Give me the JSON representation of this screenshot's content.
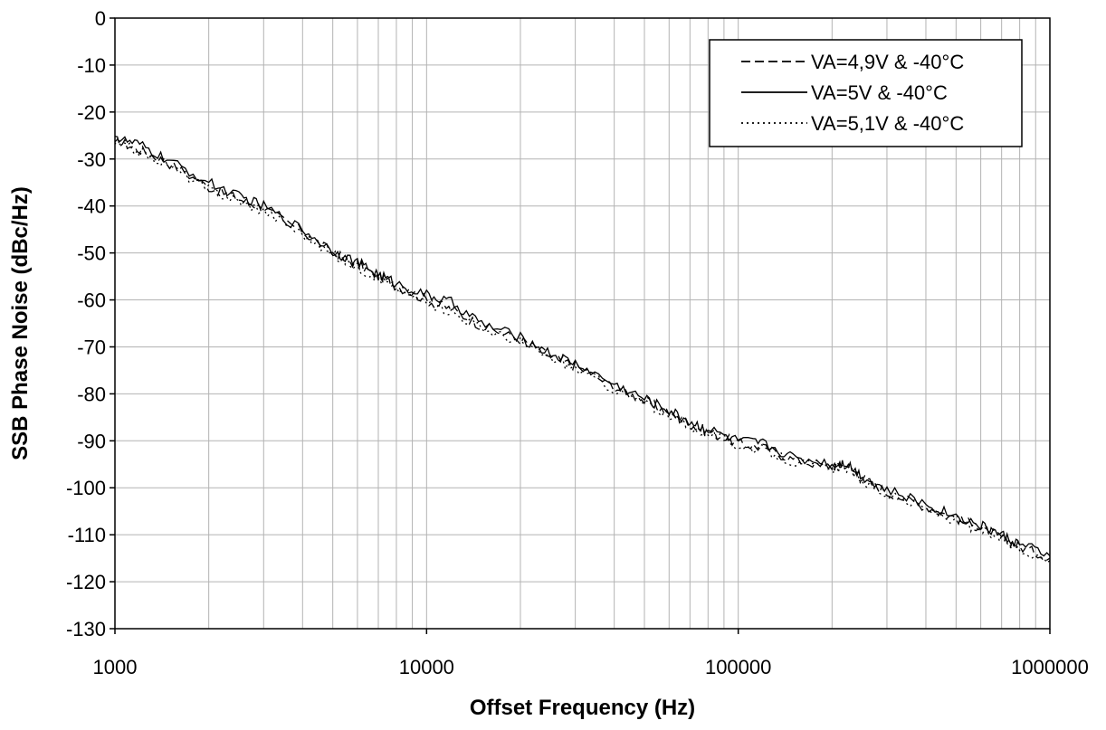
{
  "chart_data": {
    "type": "line",
    "xlabel": "Offset Frequency (Hz)",
    "ylabel": "SSB Phase Noise (dBc/Hz)",
    "x_scale": "log",
    "xlim": [
      1000,
      1000000
    ],
    "ylim": [
      -130,
      0
    ],
    "x_ticks": [
      1000,
      10000,
      100000,
      1000000
    ],
    "x_tick_labels": [
      "1000",
      "10000",
      "100000",
      "1000000"
    ],
    "y_ticks": [
      0,
      -10,
      -20,
      -30,
      -40,
      -50,
      -60,
      -70,
      -80,
      -90,
      -100,
      -110,
      -120,
      -130
    ],
    "y_tick_labels": [
      "0",
      "-10",
      "-20",
      "-30",
      "-40",
      "-50",
      "-60",
      "-70",
      "-80",
      "-90",
      "-100",
      "-110",
      "-120",
      "-130"
    ],
    "grid": "x-major-and-minor, y-major",
    "legend_position": "top-right",
    "series": [
      {
        "name": "VA=4,9V & -40°C",
        "line_style": "dashed",
        "x": [
          1000,
          1200,
          1500,
          2000,
          2500,
          3000,
          4000,
          5000,
          6000,
          7000,
          8000,
          10000,
          12000,
          15000,
          20000,
          25000,
          30000,
          40000,
          50000,
          60000,
          70000,
          80000,
          100000,
          120000,
          150000,
          200000,
          220000,
          250000,
          300000,
          400000,
          500000,
          600000,
          700000,
          800000,
          1000000
        ],
        "y": [
          -26,
          -28,
          -31,
          -36,
          -38.5,
          -40.5,
          -45.5,
          -50,
          -52.5,
          -55,
          -57,
          -60,
          -62,
          -65.5,
          -68.5,
          -72,
          -74,
          -78.5,
          -81.5,
          -84,
          -86.5,
          -88,
          -90.5,
          -91.5,
          -94,
          -95.5,
          -95,
          -98,
          -101,
          -104,
          -106.5,
          -108.5,
          -110.5,
          -112.5,
          -115
        ]
      },
      {
        "name": "VA=5V & -40°C",
        "line_style": "solid",
        "x": [
          1000,
          1200,
          1500,
          2000,
          2500,
          3000,
          4000,
          5000,
          6000,
          7000,
          8000,
          10000,
          12000,
          15000,
          20000,
          25000,
          30000,
          40000,
          50000,
          60000,
          70000,
          80000,
          100000,
          120000,
          150000,
          200000,
          220000,
          250000,
          300000,
          400000,
          500000,
          600000,
          700000,
          800000,
          1000000
        ],
        "y": [
          -25.5,
          -27,
          -30.5,
          -35,
          -38,
          -40,
          -45,
          -49.5,
          -52,
          -54.5,
          -56.5,
          -59,
          -60.5,
          -65,
          -68,
          -71.5,
          -73.5,
          -78,
          -81,
          -83.5,
          -86,
          -87.5,
          -90,
          -90.5,
          -93.5,
          -95,
          -94.5,
          -97.5,
          -100.5,
          -103.5,
          -106,
          -108,
          -110,
          -112,
          -114.5
        ]
      },
      {
        "name": "VA=5,1V & -40°C",
        "line_style": "dotted",
        "x": [
          1000,
          1200,
          1500,
          2000,
          2500,
          3000,
          4000,
          5000,
          6000,
          7000,
          8000,
          10000,
          12000,
          15000,
          20000,
          25000,
          30000,
          40000,
          50000,
          60000,
          70000,
          80000,
          100000,
          120000,
          150000,
          200000,
          220000,
          250000,
          300000,
          400000,
          500000,
          600000,
          700000,
          800000,
          1000000
        ],
        "y": [
          -26.5,
          -28.5,
          -31.5,
          -36.5,
          -39,
          -41,
          -46,
          -50.5,
          -53,
          -55.5,
          -57.5,
          -60.5,
          -62.5,
          -66,
          -69,
          -72.5,
          -74.5,
          -79,
          -82,
          -84.5,
          -87,
          -88.5,
          -91,
          -92,
          -94.5,
          -96,
          -95.5,
          -98.5,
          -101.5,
          -104.5,
          -107,
          -109,
          -111,
          -113,
          -115.5
        ]
      }
    ]
  }
}
